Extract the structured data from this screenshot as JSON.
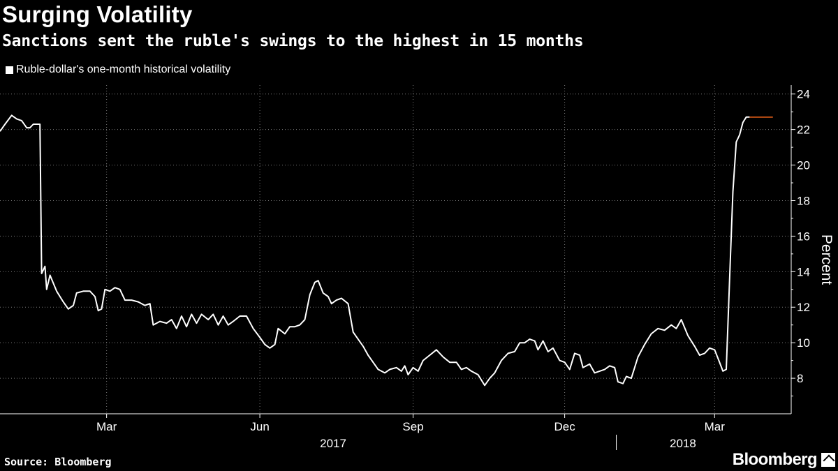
{
  "header": {
    "title": "Surging Volatility",
    "subtitle": "Sanctions sent the ruble's swings to the highest in 15 months"
  },
  "footer": {
    "source": "Source: Bloomberg",
    "brand": "Bloomberg"
  },
  "colors": {
    "background": "#000000",
    "line": "#ffffff",
    "last_value_marker": "#ff6a1a",
    "grid": "#7a7a7a"
  },
  "chart_data": {
    "type": "line",
    "title": "Surging Volatility",
    "subtitle": "Sanctions sent the ruble's swings to the highest in 15 months",
    "ylabel": "Percent",
    "xlabel": "",
    "ylim": [
      6,
      24.5
    ],
    "xlim": [
      "2016-12-27",
      "2018-04-16"
    ],
    "y_ticks": [
      8,
      10,
      12,
      14,
      16,
      18,
      20,
      22,
      24
    ],
    "x_ticks": [
      {
        "label": "Mar",
        "date": "2017-03-01"
      },
      {
        "label": "Jun",
        "date": "2017-06-01"
      },
      {
        "label": "Sep",
        "date": "2017-09-01"
      },
      {
        "label": "Dec",
        "date": "2017-12-01"
      },
      {
        "label": "Mar",
        "date": "2018-03-01"
      }
    ],
    "year_labels": [
      {
        "label": "2017",
        "date": "2017-07-15"
      },
      {
        "label": "2018",
        "date": "2018-02-10"
      }
    ],
    "year_divider_date": "2018-01-01",
    "grid": true,
    "legend_position": "top-left",
    "series": [
      {
        "name": "Ruble-dollar's one-month historical volatility",
        "points": [
          [
            "2016-12-27",
            21.9
          ],
          [
            "2016-12-30",
            22.3
          ],
          [
            "2017-01-03",
            22.8
          ],
          [
            "2017-01-06",
            22.6
          ],
          [
            "2017-01-09",
            22.5
          ],
          [
            "2017-01-12",
            22.1
          ],
          [
            "2017-01-14",
            22.1
          ],
          [
            "2017-01-16",
            22.3
          ],
          [
            "2017-01-20",
            22.3
          ],
          [
            "2017-01-21",
            13.9
          ],
          [
            "2017-01-23",
            14.3
          ],
          [
            "2017-01-24",
            13.0
          ],
          [
            "2017-01-26",
            13.8
          ],
          [
            "2017-01-30",
            12.9
          ],
          [
            "2017-02-03",
            12.3
          ],
          [
            "2017-02-06",
            11.9
          ],
          [
            "2017-02-09",
            12.1
          ],
          [
            "2017-02-11",
            12.8
          ],
          [
            "2017-02-15",
            12.9
          ],
          [
            "2017-02-19",
            12.9
          ],
          [
            "2017-02-22",
            12.6
          ],
          [
            "2017-02-24",
            11.8
          ],
          [
            "2017-02-26",
            11.9
          ],
          [
            "2017-02-28",
            13.0
          ],
          [
            "2017-03-03",
            12.9
          ],
          [
            "2017-03-06",
            13.1
          ],
          [
            "2017-03-09",
            13.0
          ],
          [
            "2017-03-12",
            12.4
          ],
          [
            "2017-03-16",
            12.4
          ],
          [
            "2017-03-20",
            12.3
          ],
          [
            "2017-03-24",
            12.1
          ],
          [
            "2017-03-27",
            12.2
          ],
          [
            "2017-03-29",
            11.0
          ],
          [
            "2017-04-02",
            11.2
          ],
          [
            "2017-04-06",
            11.1
          ],
          [
            "2017-04-09",
            11.3
          ],
          [
            "2017-04-12",
            10.8
          ],
          [
            "2017-04-15",
            11.5
          ],
          [
            "2017-04-18",
            10.9
          ],
          [
            "2017-04-21",
            11.6
          ],
          [
            "2017-04-24",
            11.1
          ],
          [
            "2017-04-27",
            11.6
          ],
          [
            "2017-05-01",
            11.3
          ],
          [
            "2017-05-04",
            11.6
          ],
          [
            "2017-05-07",
            11.0
          ],
          [
            "2017-05-10",
            11.5
          ],
          [
            "2017-05-13",
            11.0
          ],
          [
            "2017-05-16",
            11.2
          ],
          [
            "2017-05-20",
            11.5
          ],
          [
            "2017-05-24",
            11.5
          ],
          [
            "2017-05-28",
            10.8
          ],
          [
            "2017-06-01",
            10.3
          ],
          [
            "2017-06-04",
            9.9
          ],
          [
            "2017-06-07",
            9.7
          ],
          [
            "2017-06-10",
            9.9
          ],
          [
            "2017-06-12",
            10.8
          ],
          [
            "2017-06-16",
            10.5
          ],
          [
            "2017-06-19",
            10.9
          ],
          [
            "2017-06-22",
            10.9
          ],
          [
            "2017-06-25",
            11.0
          ],
          [
            "2017-06-28",
            11.3
          ],
          [
            "2017-07-01",
            12.7
          ],
          [
            "2017-07-04",
            13.4
          ],
          [
            "2017-07-06",
            13.5
          ],
          [
            "2017-07-09",
            12.8
          ],
          [
            "2017-07-12",
            12.6
          ],
          [
            "2017-07-14",
            12.2
          ],
          [
            "2017-07-17",
            12.4
          ],
          [
            "2017-07-20",
            12.5
          ],
          [
            "2017-07-24",
            12.2
          ],
          [
            "2017-07-27",
            10.6
          ],
          [
            "2017-07-30",
            10.2
          ],
          [
            "2017-08-02",
            9.8
          ],
          [
            "2017-08-05",
            9.3
          ],
          [
            "2017-08-08",
            8.9
          ],
          [
            "2017-08-11",
            8.5
          ],
          [
            "2017-08-15",
            8.3
          ],
          [
            "2017-08-18",
            8.5
          ],
          [
            "2017-08-22",
            8.6
          ],
          [
            "2017-08-25",
            8.4
          ],
          [
            "2017-08-27",
            8.7
          ],
          [
            "2017-08-29",
            8.2
          ],
          [
            "2017-09-01",
            8.6
          ],
          [
            "2017-09-04",
            8.4
          ],
          [
            "2017-09-07",
            9.0
          ],
          [
            "2017-09-11",
            9.3
          ],
          [
            "2017-09-15",
            9.6
          ],
          [
            "2017-09-19",
            9.2
          ],
          [
            "2017-09-23",
            8.9
          ],
          [
            "2017-09-27",
            8.9
          ],
          [
            "2017-09-30",
            8.5
          ],
          [
            "2017-10-03",
            8.6
          ],
          [
            "2017-10-06",
            8.4
          ],
          [
            "2017-10-10",
            8.2
          ],
          [
            "2017-10-14",
            7.6
          ],
          [
            "2017-10-17",
            8.0
          ],
          [
            "2017-10-20",
            8.3
          ],
          [
            "2017-10-24",
            9.0
          ],
          [
            "2017-10-28",
            9.4
          ],
          [
            "2017-11-01",
            9.5
          ],
          [
            "2017-11-04",
            10.0
          ],
          [
            "2017-11-07",
            10.0
          ],
          [
            "2017-11-10",
            10.2
          ],
          [
            "2017-11-13",
            10.1
          ],
          [
            "2017-11-15",
            9.6
          ],
          [
            "2017-11-18",
            10.1
          ],
          [
            "2017-11-21",
            9.5
          ],
          [
            "2017-11-24",
            9.7
          ],
          [
            "2017-11-28",
            9.0
          ],
          [
            "2017-12-01",
            8.9
          ],
          [
            "2017-12-04",
            8.5
          ],
          [
            "2017-12-07",
            9.4
          ],
          [
            "2017-12-10",
            9.3
          ],
          [
            "2017-12-12",
            8.6
          ],
          [
            "2017-12-16",
            8.8
          ],
          [
            "2017-12-19",
            8.3
          ],
          [
            "2017-12-22",
            8.4
          ],
          [
            "2017-12-25",
            8.5
          ],
          [
            "2017-12-28",
            8.7
          ],
          [
            "2017-12-31",
            8.6
          ],
          [
            "2018-01-02",
            7.8
          ],
          [
            "2018-01-05",
            7.7
          ],
          [
            "2018-01-07",
            8.1
          ],
          [
            "2018-01-10",
            8.0
          ],
          [
            "2018-01-14",
            9.2
          ],
          [
            "2018-01-18",
            9.9
          ],
          [
            "2018-01-22",
            10.5
          ],
          [
            "2018-01-26",
            10.8
          ],
          [
            "2018-01-30",
            10.7
          ],
          [
            "2018-02-03",
            11.0
          ],
          [
            "2018-02-06",
            10.8
          ],
          [
            "2018-02-09",
            11.3
          ],
          [
            "2018-02-13",
            10.4
          ],
          [
            "2018-02-17",
            9.8
          ],
          [
            "2018-02-20",
            9.3
          ],
          [
            "2018-02-23",
            9.4
          ],
          [
            "2018-02-26",
            9.7
          ],
          [
            "2018-03-01",
            9.6
          ],
          [
            "2018-03-04",
            8.9
          ],
          [
            "2018-03-06",
            8.4
          ],
          [
            "2018-03-08",
            8.5
          ],
          [
            "2018-03-10",
            13.5
          ],
          [
            "2018-03-12",
            18.5
          ],
          [
            "2018-03-14",
            21.3
          ],
          [
            "2018-03-16",
            21.7
          ],
          [
            "2018-03-18",
            22.4
          ],
          [
            "2018-03-20",
            22.7
          ],
          [
            "2018-03-22",
            22.7
          ]
        ]
      }
    ],
    "last_value": {
      "value": 22.7,
      "from": "2018-03-22",
      "to": "2018-04-05"
    }
  }
}
